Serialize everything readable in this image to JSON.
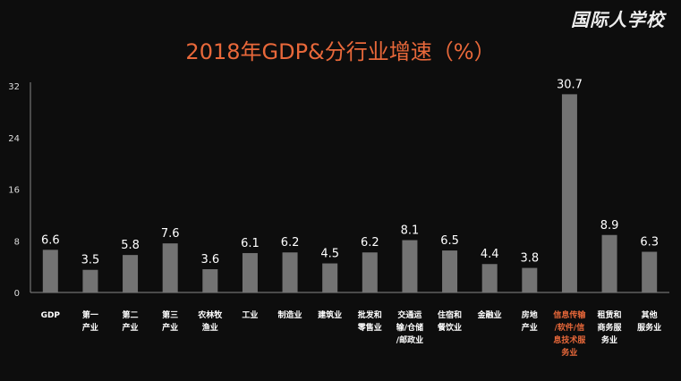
{
  "logo": "国际人学校",
  "chart_data": {
    "type": "bar",
    "title": "2018年GDP&分行业增速（%）",
    "categories": [
      [
        "GDP"
      ],
      [
        "第一",
        "产业"
      ],
      [
        "第二",
        "产业"
      ],
      [
        "第三",
        "产业"
      ],
      [
        "农林牧",
        "渔业"
      ],
      [
        "工业"
      ],
      [
        "制造业"
      ],
      [
        "建筑业"
      ],
      [
        "批发和",
        "零售业"
      ],
      [
        "交通运",
        "输/仓储",
        "/邮政业"
      ],
      [
        "住宿和",
        "餐饮业"
      ],
      [
        "金融业"
      ],
      [
        "房地",
        "产业"
      ],
      [
        "信息传输",
        "/软件/信",
        "息技术服",
        "务业"
      ],
      [
        "租赁和",
        "商务服",
        "务业"
      ],
      [
        "其他",
        "服务业"
      ]
    ],
    "values": [
      6.6,
      3.5,
      5.8,
      7.6,
      3.6,
      6.1,
      6.2,
      4.5,
      6.2,
      8.1,
      6.5,
      4.4,
      3.8,
      30.7,
      8.9,
      6.3
    ],
    "value_labels": [
      "6.6",
      "3.5",
      "5.8",
      "7.6",
      "3.6",
      "6.1",
      "6.2",
      "4.5",
      "6.2",
      "8.1",
      "6.5",
      "4.4",
      "3.8",
      "30.7",
      "8.9",
      "6.3"
    ],
    "highlight_index": 13,
    "ylim": [
      0,
      32
    ],
    "yticks": [
      "0",
      "8",
      "16",
      "24",
      "32"
    ],
    "xlabel": "",
    "ylabel": "",
    "grid": false,
    "legend": "none",
    "colors": {
      "bar": "#737373",
      "title": "#e8683a",
      "highlight_label": "#e8683a",
      "text": "#ffffff",
      "axis": "#888888"
    }
  }
}
